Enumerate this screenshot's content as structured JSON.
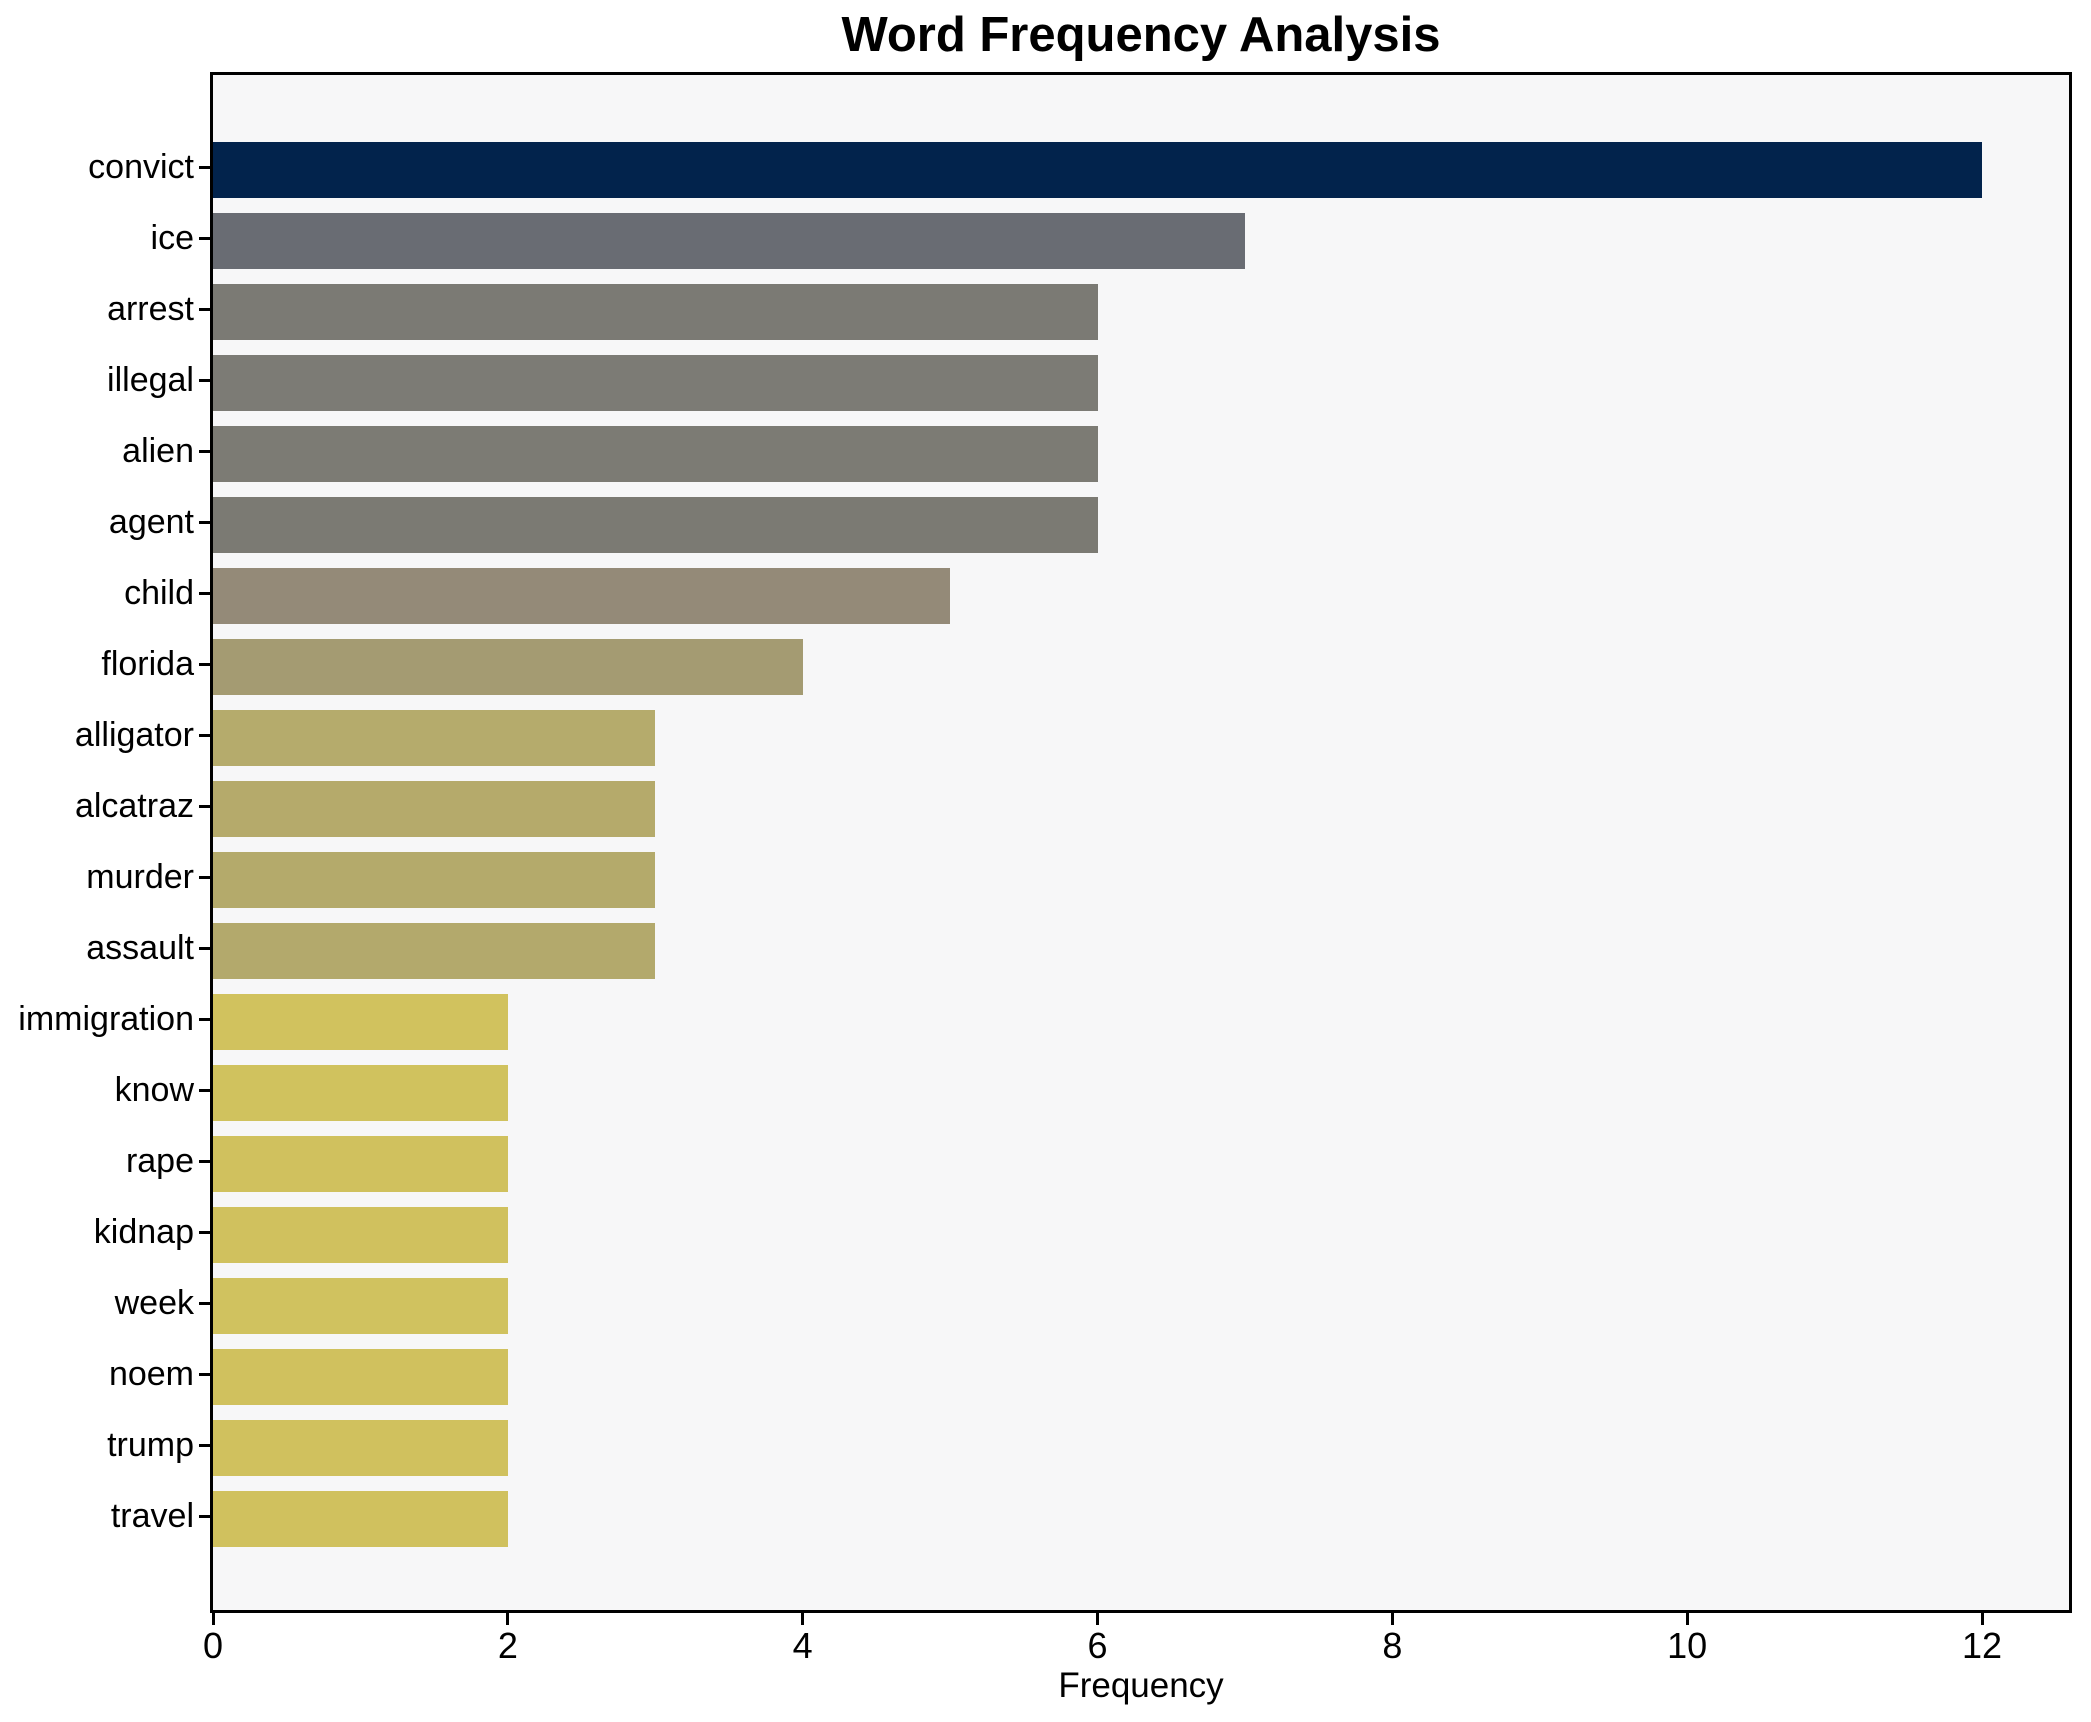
{
  "figure": {
    "background": "#ffffff",
    "plot_background": "#f7f7f8",
    "spine_color": "#000000",
    "text_color": "#000000"
  },
  "chart_data": {
    "type": "bar",
    "orientation": "horizontal",
    "title": "Word Frequency Analysis",
    "xlabel": "Frequency",
    "ylabel": "",
    "categories": [
      "convict",
      "ice",
      "arrest",
      "illegal",
      "alien",
      "agent",
      "child",
      "florida",
      "alligator",
      "alcatraz",
      "murder",
      "assault",
      "immigration",
      "know",
      "rape",
      "kidnap",
      "week",
      "noem",
      "trump",
      "travel"
    ],
    "values": [
      12,
      7,
      6,
      6,
      6,
      6,
      5,
      4,
      3,
      3,
      3,
      3,
      2,
      2,
      2,
      2,
      2,
      2,
      2,
      2
    ],
    "bar_colors": [
      "#02234c",
      "#696c73",
      "#7b7a74",
      "#7c7b75",
      "#7c7b74",
      "#7b7a73",
      "#948a78",
      "#a49b72",
      "#b5ab6c",
      "#b5aa6b",
      "#b4aa6b",
      "#b3a96c",
      "#d1c25e",
      "#d0c25e",
      "#d0c15e",
      "#d0c15e",
      "#d0c25f",
      "#d0c15e",
      "#d0c15e",
      "#d0c15e"
    ],
    "xlim": [
      0,
      12.59
    ],
    "xticks": [
      0,
      2,
      4,
      6,
      8,
      10,
      12
    ],
    "xtick_labels": [
      "0",
      "2",
      "4",
      "6",
      "8",
      "10",
      "12"
    ],
    "grid": false,
    "legend": false
  }
}
